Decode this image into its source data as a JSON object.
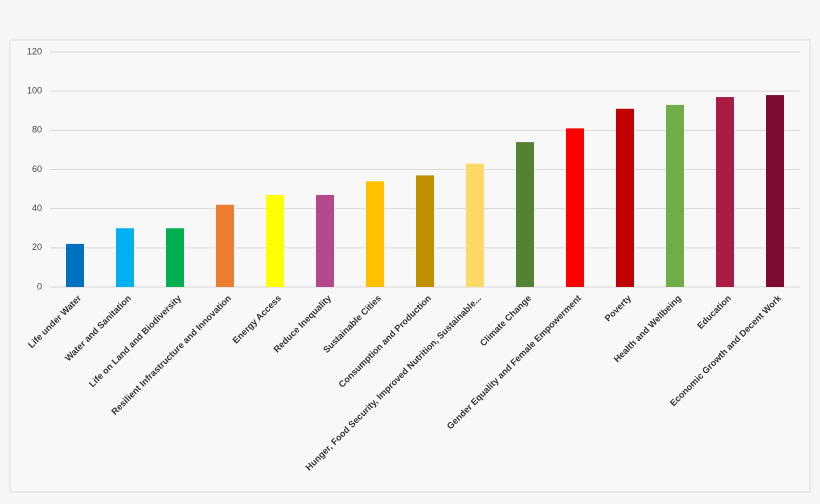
{
  "chart_data": {
    "type": "bar",
    "categories": [
      "Life under Water",
      "Water and Sanitation",
      "Life on Land and Biodiversity",
      "Resilient Infrastructure and Innovation",
      "Energy Access",
      "Reduce Inequality",
      "Sustainable Cities",
      "Consumption and Production",
      "Hunger, Food Security, Improved Nutrition, Sustainable...",
      "Climate Change",
      "Gender Equality and Female Empowerment",
      "Poverty",
      "Health and Wellbeing",
      "Education",
      "Economic Growth and Decent Work"
    ],
    "values": [
      22,
      30,
      30,
      42,
      47,
      47,
      54,
      57,
      63,
      74,
      81,
      91,
      93,
      97,
      98
    ],
    "colors": [
      "#0070c0",
      "#00b0f0",
      "#00b050",
      "#ed7d31",
      "#ffff00",
      "#b5488a",
      "#ffc000",
      "#bf9000",
      "#ffd966",
      "#548235",
      "#ff0000",
      "#c00000",
      "#70ad47",
      "#a91d44",
      "#7f0a34"
    ],
    "ylim": [
      0,
      120
    ],
    "yticks": [
      0,
      20,
      40,
      60,
      80,
      100,
      120
    ],
    "grid": true
  }
}
